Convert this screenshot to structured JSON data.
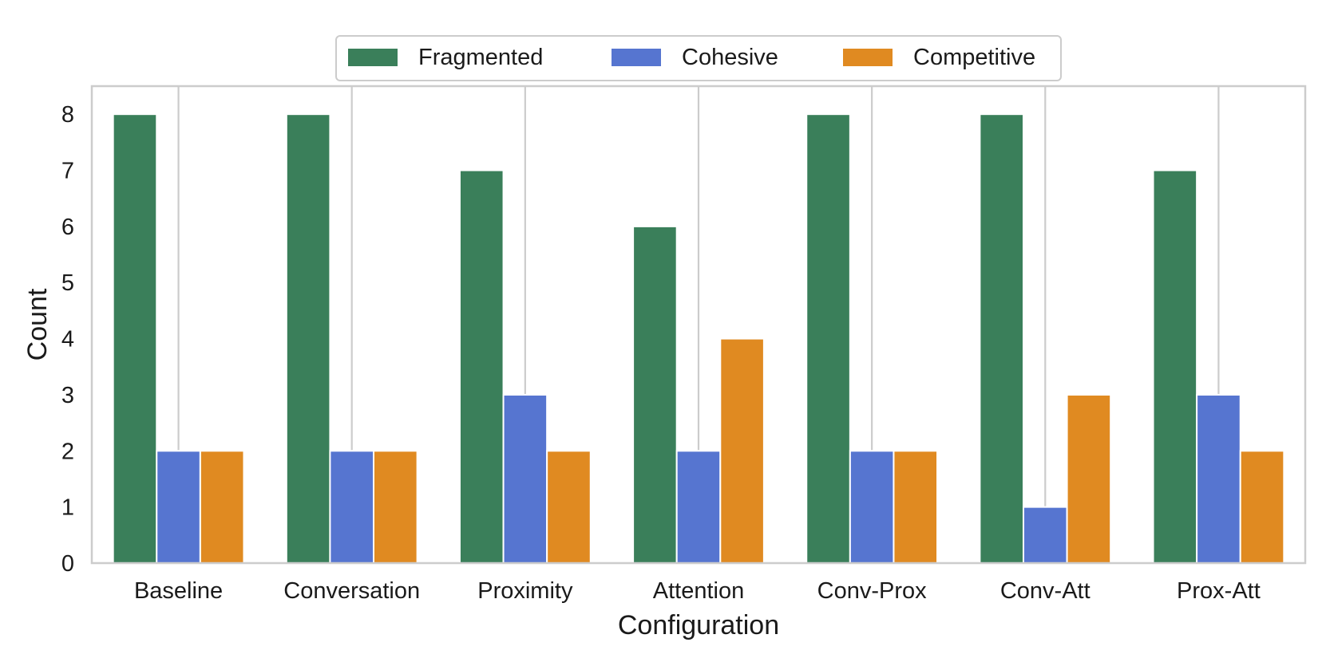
{
  "chart_data": {
    "type": "bar",
    "title": "",
    "xlabel": "Configuration",
    "ylabel": "Count",
    "ylim": [
      0,
      8.5
    ],
    "yticks": [
      0,
      1,
      2,
      3,
      4,
      5,
      6,
      7,
      8
    ],
    "grid": "vertical",
    "legend_position": "top-center",
    "categories": [
      "Baseline",
      "Conversation",
      "Proximity",
      "Attention",
      "Conv-Prox",
      "Conv-Att",
      "Prox-Att"
    ],
    "series": [
      {
        "name": "Fragmented",
        "color": "#3a7f5a",
        "values": [
          8,
          8,
          7,
          6,
          8,
          8,
          7
        ]
      },
      {
        "name": "Cohesive",
        "color": "#5675d0",
        "values": [
          2,
          2,
          3,
          2,
          2,
          1,
          3
        ]
      },
      {
        "name": "Competitive",
        "color": "#e08a21",
        "values": [
          2,
          2,
          2,
          4,
          2,
          3,
          2
        ]
      }
    ]
  }
}
